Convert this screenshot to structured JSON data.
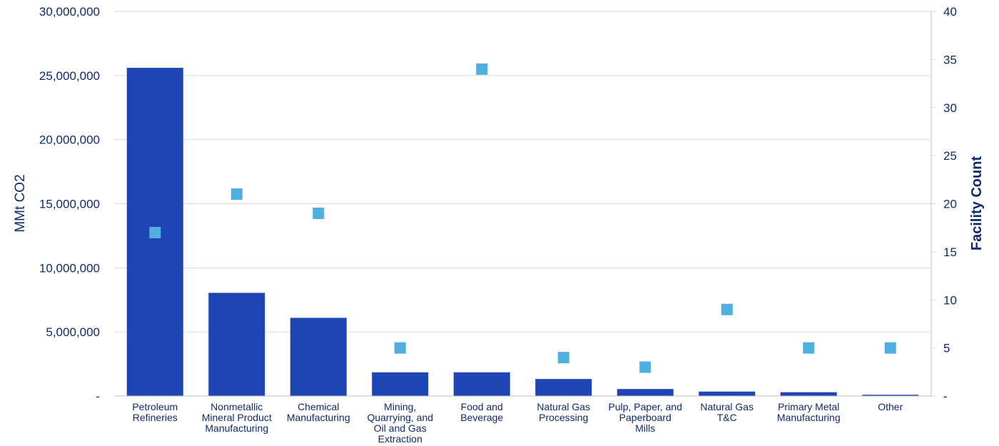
{
  "chart_data": {
    "type": "bar",
    "categories": [
      [
        "Petroleum",
        "Refineries"
      ],
      [
        "Nonmetallic",
        "Mineral Product",
        "Manufacturing"
      ],
      [
        "Chemical",
        "Manufacturing"
      ],
      [
        "Mining,",
        "Quarrying, and",
        "Oil and Gas",
        "Extraction"
      ],
      [
        "Food and",
        "Beverage"
      ],
      [
        "Natural Gas",
        "Processing"
      ],
      [
        "Pulp, Paper, and",
        "Paperboard",
        "Mills"
      ],
      [
        "Natural Gas",
        "T&C"
      ],
      [
        "Primary Metal",
        "Manufacturing"
      ],
      [
        "Other"
      ]
    ],
    "series": [
      {
        "kind": "bar",
        "axis": "left",
        "values": [
          25600000,
          8050000,
          6100000,
          1850000,
          1850000,
          1330000,
          550000,
          350000,
          300000,
          100000
        ]
      },
      {
        "kind": "scatter",
        "axis": "right",
        "values": [
          17,
          21,
          19,
          5,
          34,
          4,
          3,
          9,
          5,
          5
        ]
      }
    ],
    "ylabel": "MMt CO2",
    "y2label": "Facility Count",
    "ylim": [
      0,
      30000000
    ],
    "y2lim": [
      0,
      40
    ],
    "yticks": [
      "-",
      "5,000,000",
      "10,000,000",
      "15,000,000",
      "20,000,000",
      "25,000,000",
      "30,000,000"
    ],
    "y2ticks": [
      "-",
      "5",
      "10",
      "15",
      "20",
      "25",
      "30",
      "35",
      "40"
    ],
    "grid": true,
    "colors": {
      "bar": "#1f45b5",
      "marker": "#4fb0e0",
      "text": "#0f2a6b",
      "grid": "#d9d9d9"
    }
  }
}
